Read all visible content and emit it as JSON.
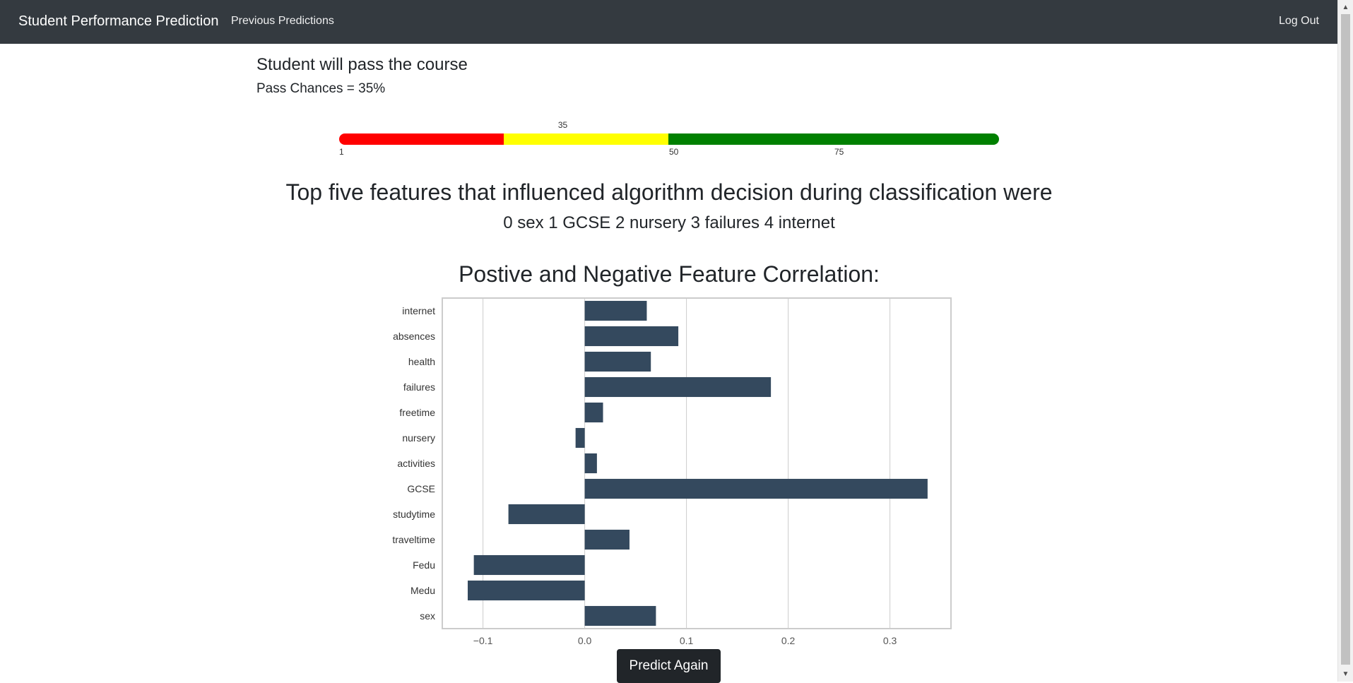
{
  "navbar": {
    "brand": "Student Performance Prediction",
    "links": {
      "previous_predictions": "Previous Predictions",
      "log_out": "Log Out"
    }
  },
  "result": {
    "title": "Student will pass the course",
    "pass_chances": "Pass Chances = 35%"
  },
  "gauge": {
    "value": 35,
    "value_label": "35",
    "tick_labels": [
      "1",
      "50",
      "75"
    ],
    "colors": {
      "low": "#ff0000",
      "mid": "#ffff00",
      "high": "#008000"
    }
  },
  "features": {
    "heading": "Top five features that influenced algorithm decision during classification were",
    "list": "0 sex 1 GCSE 2 nursery 3 failures 4 internet"
  },
  "chart_heading": "Postive and Negative Feature Correlation:",
  "chart_data": {
    "type": "bar",
    "orientation": "horizontal",
    "categories": [
      "internet",
      "absences",
      "health",
      "failures",
      "freetime",
      "nursery",
      "activities",
      "GCSE",
      "studytime",
      "traveltime",
      "Fedu",
      "Medu",
      "sex"
    ],
    "values": [
      0.061,
      0.092,
      0.065,
      0.183,
      0.018,
      -0.009,
      0.012,
      0.337,
      -0.075,
      0.044,
      -0.109,
      -0.115,
      0.07
    ],
    "xticks": [
      -0.1,
      0.0,
      0.1,
      0.2,
      0.3
    ],
    "xtick_labels": [
      "−0.1",
      "0.0",
      "0.1",
      "0.2",
      "0.3"
    ],
    "xlim": [
      -0.14,
      0.36
    ],
    "grid": true,
    "bar_color": "#34495e"
  },
  "actions": {
    "predict_again": "Predict Again"
  }
}
